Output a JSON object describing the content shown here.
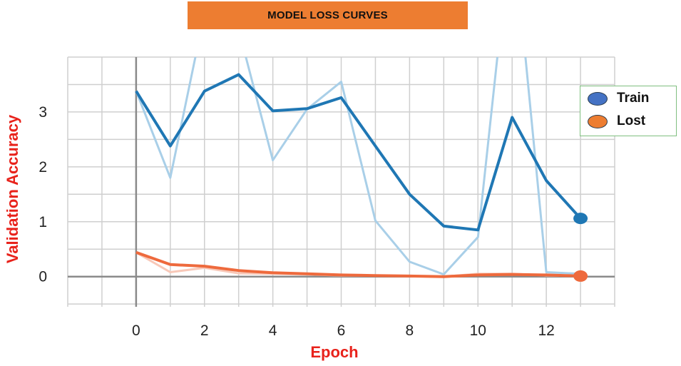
{
  "chart_data": {
    "type": "line",
    "title": "MODEL LOSS CURVES",
    "xlabel": "Epoch",
    "ylabel": "Validation Accuracy",
    "x_ticks": [
      0,
      2,
      4,
      6,
      8,
      10,
      12
    ],
    "y_ticks": [
      0,
      1,
      2,
      3
    ],
    "xlim": [
      -2,
      14
    ],
    "ylim": [
      -0.55,
      4.0
    ],
    "grid": true,
    "legend_position": "right",
    "series": [
      {
        "name": "Train",
        "color": "#1f77b4",
        "raw_color": "#a9cfe8",
        "marker_color": "#1f77b4",
        "x": [
          0,
          1,
          2,
          3,
          4,
          5,
          6,
          7,
          8,
          9,
          10,
          11,
          12,
          13
        ],
        "smoothed": [
          3.38,
          2.38,
          3.38,
          3.68,
          3.02,
          3.06,
          3.26,
          2.38,
          1.5,
          0.92,
          0.85,
          2.9,
          1.75,
          1.06
        ],
        "raw": [
          3.38,
          1.8,
          4.8,
          4.5,
          2.12,
          3.05,
          3.55,
          1.02,
          0.27,
          0.04,
          0.72,
          6.5,
          0.08,
          0.05
        ]
      },
      {
        "name": "Lost",
        "color": "#ee6a3d",
        "raw_color": "#f8c8b8",
        "marker_color": "#ee6a3d",
        "x": [
          0,
          1,
          2,
          3,
          4,
          5,
          6,
          7,
          8,
          9,
          10,
          11,
          12,
          13
        ],
        "smoothed": [
          0.44,
          0.22,
          0.19,
          0.11,
          0.07,
          0.05,
          0.03,
          0.02,
          0.01,
          0.0,
          0.03,
          0.04,
          0.03,
          0.01
        ],
        "raw": [
          0.44,
          0.08,
          0.16,
          0.06,
          0.05,
          0.04,
          0.02,
          0.02,
          0.01,
          0.0,
          0.05,
          0.05,
          0.02,
          0.01
        ]
      }
    ]
  }
}
